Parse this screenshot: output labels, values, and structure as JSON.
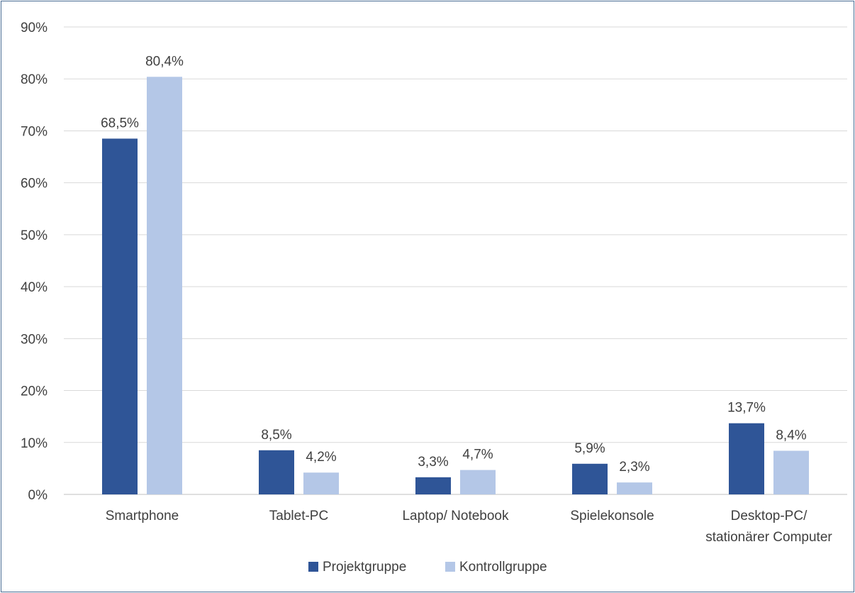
{
  "chart_data": {
    "type": "bar",
    "categories": [
      [
        "Smartphone"
      ],
      [
        "Tablet-PC"
      ],
      [
        "Laptop/ Notebook"
      ],
      [
        "Spielekonsole"
      ],
      [
        "Desktop-PC/",
        "stationärer Computer"
      ]
    ],
    "series": [
      {
        "name": "Projektgruppe",
        "color": "#2f5597",
        "values": [
          68.5,
          8.5,
          3.3,
          5.9,
          13.7
        ],
        "labels": [
          "68,5%",
          "8,5%",
          "3,3%",
          "5,9%",
          "13,7%"
        ]
      },
      {
        "name": "Kontrollgruppe",
        "color": "#b4c7e7",
        "values": [
          80.4,
          4.2,
          4.7,
          2.3,
          8.4
        ],
        "labels": [
          "80,4%",
          "4,2%",
          "4,7%",
          "2,3%",
          "8,4%"
        ]
      }
    ],
    "yticks": [
      "0%",
      "10%",
      "20%",
      "30%",
      "40%",
      "50%",
      "60%",
      "70%",
      "80%",
      "90%"
    ],
    "ylim": [
      0,
      90
    ],
    "grid": true,
    "legend_position": "bottom"
  }
}
